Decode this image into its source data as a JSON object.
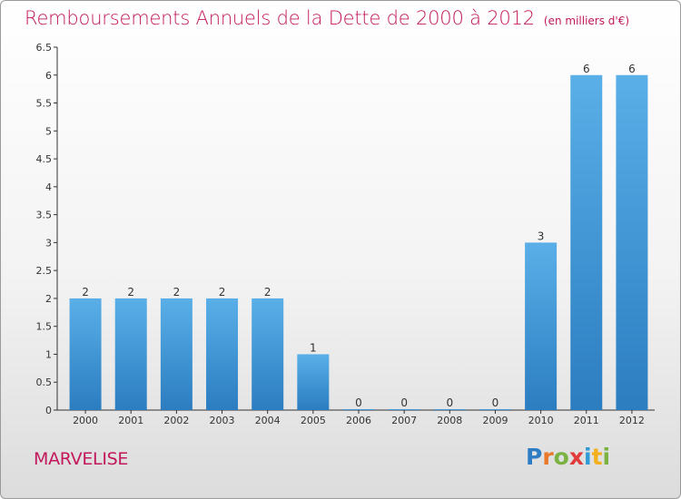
{
  "header": {
    "title": "Remboursements Annuels de la Dette de 2000 à 2012",
    "unit": "(en milliers d'€)"
  },
  "footer": {
    "commune": "MARVELISE",
    "brand": "Proxiti"
  },
  "colors": {
    "title": "#c2185b",
    "bar_top": "#5aafe8",
    "bar_bottom": "#2b7dc0",
    "axis": "#333333"
  },
  "chart_data": {
    "type": "bar",
    "title": "Remboursements Annuels de la Dette de 2000 à 2012",
    "xlabel": "",
    "ylabel": "",
    "categories": [
      "2000",
      "2001",
      "2002",
      "2003",
      "2004",
      "2005",
      "2006",
      "2007",
      "2008",
      "2009",
      "2010",
      "2011",
      "2012"
    ],
    "values": [
      2,
      2,
      2,
      2,
      2,
      1,
      0,
      0,
      0,
      0,
      3,
      6,
      6
    ],
    "data_labels": [
      "2",
      "2",
      "2",
      "2",
      "2",
      "1",
      "0",
      "0",
      "0",
      "0",
      "3",
      "6",
      "6"
    ],
    "ylim": [
      0,
      6.5
    ],
    "yticks": [
      0,
      0.5,
      1,
      1.5,
      2,
      2.5,
      3,
      3.5,
      4,
      4.5,
      5,
      5.5,
      6,
      6.5
    ],
    "grid": false,
    "legend": "none"
  }
}
